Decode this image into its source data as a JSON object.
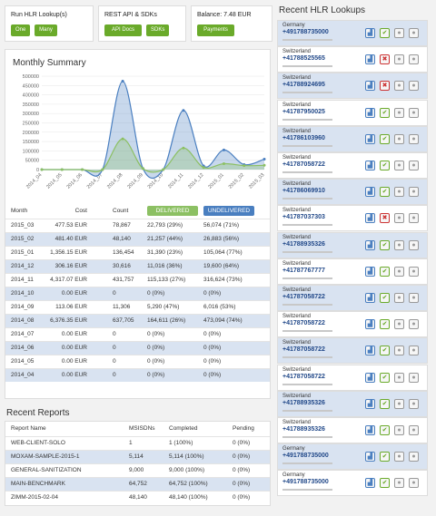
{
  "panels": [
    {
      "title": "Run HLR Lookup(s)",
      "buttons": [
        "One",
        "Many"
      ]
    },
    {
      "title": "REST API & SDKs",
      "buttons": [
        "API Docs",
        "SDKs"
      ]
    },
    {
      "title": "Balance: 7.48 EUR",
      "buttons": [
        "Payments"
      ]
    }
  ],
  "monthly_summary": {
    "title": "Monthly Summary",
    "chart_data": {
      "type": "area",
      "categories": [
        "2014_04",
        "2014_05",
        "2014_06",
        "2014_07",
        "2014_08",
        "2014_09",
        "2014_10",
        "2014_11",
        "2014_12",
        "2015_01",
        "2015_02",
        "2015_03"
      ],
      "series": [
        {
          "color": "#4a7fc0",
          "values": [
            0,
            0,
            0,
            0,
            473094,
            6016,
            0,
            316624,
            19600,
            105064,
            26883,
            56074
          ]
        },
        {
          "color": "#8cc063",
          "values": [
            0,
            0,
            0,
            0,
            164611,
            5290,
            0,
            115133,
            11016,
            31390,
            21257,
            22793
          ]
        }
      ],
      "ylim": [
        0,
        500000
      ],
      "yticks": [
        0,
        50000,
        100000,
        150000,
        200000,
        250000,
        300000,
        350000,
        400000,
        450000,
        500000
      ],
      "grid": true
    },
    "table": {
      "headers": [
        "Month",
        "Cost",
        "Count",
        "DELIVERED",
        "UNDELIVERED"
      ],
      "rows": [
        [
          "2015_03",
          "477.53 EUR",
          "78,867",
          "22,793 (29%)",
          "56,074 (71%)"
        ],
        [
          "2015_02",
          "481.40 EUR",
          "48,140",
          "21,257 (44%)",
          "26,883 (56%)"
        ],
        [
          "2015_01",
          "1,356.15 EUR",
          "136,454",
          "31,390 (23%)",
          "105,064 (77%)"
        ],
        [
          "2014_12",
          "306.16 EUR",
          "30,616",
          "11,016 (36%)",
          "19,600 (64%)"
        ],
        [
          "2014_11",
          "4,317.07 EUR",
          "431,757",
          "115,133 (27%)",
          "316,624 (73%)"
        ],
        [
          "2014_10",
          "0.00 EUR",
          "0",
          "0 (0%)",
          "0 (0%)"
        ],
        [
          "2014_09",
          "113.06 EUR",
          "11,306",
          "5,290 (47%)",
          "6,016 (53%)"
        ],
        [
          "2014_08",
          "6,376.35 EUR",
          "637,705",
          "164,611 (26%)",
          "473,094 (74%)"
        ],
        [
          "2014_07",
          "0.00 EUR",
          "0",
          "0 (0%)",
          "0 (0%)"
        ],
        [
          "2014_06",
          "0.00 EUR",
          "0",
          "0 (0%)",
          "0 (0%)"
        ],
        [
          "2014_05",
          "0.00 EUR",
          "0",
          "0 (0%)",
          "0 (0%)"
        ],
        [
          "2014_04",
          "0.00 EUR",
          "0",
          "0 (0%)",
          "0 (0%)"
        ]
      ]
    }
  },
  "recent_reports": {
    "title": "Recent Reports",
    "table": {
      "headers": [
        "Report Name",
        "MSISDNs",
        "Completed",
        "Pending"
      ],
      "rows": [
        [
          "WEB-CLIENT-SOLO",
          "1",
          "1 (100%)",
          "0 (0%)"
        ],
        [
          "MOXAM-SAMPLE-2015-1",
          "5,114",
          "5,114 (100%)",
          "0 (0%)"
        ],
        [
          "GENERAL-SANITIZATION",
          "9,000",
          "9,000 (100%)",
          "0 (0%)"
        ],
        [
          "MAIN-BENCHMARK",
          "64,752",
          "64,752 (100%)",
          "0 (0%)"
        ],
        [
          "ZIMM-2015-02-04",
          "48,140",
          "48,140 (100%)",
          "0 (0%)"
        ]
      ]
    }
  },
  "recent_lookups": {
    "title": "Recent HLR Lookups",
    "items": [
      {
        "country": "Germany",
        "number": "+491788735000",
        "ok": true
      },
      {
        "country": "Switzerland",
        "number": "+41788525565",
        "ok": false
      },
      {
        "country": "Switzerland",
        "number": "+41788924695",
        "ok": false
      },
      {
        "country": "Switzerland",
        "number": "+41787950025",
        "ok": true
      },
      {
        "country": "Switzerland",
        "number": "+41786103960",
        "ok": true
      },
      {
        "country": "Switzerland",
        "number": "+41787058722",
        "ok": true
      },
      {
        "country": "Switzerland",
        "number": "+41786069910",
        "ok": true
      },
      {
        "country": "Switzerland",
        "number": "+41787037303",
        "ok": false
      },
      {
        "country": "Switzerland",
        "number": "+41788935326",
        "ok": true
      },
      {
        "country": "Switzerland",
        "number": "+41787767777",
        "ok": true
      },
      {
        "country": "Switzerland",
        "number": "+41787058722",
        "ok": true
      },
      {
        "country": "Switzerland",
        "number": "+41787058722",
        "ok": true
      },
      {
        "country": "Switzerland",
        "number": "+41787058722",
        "ok": true
      },
      {
        "country": "Switzerland",
        "number": "+41787058722",
        "ok": true
      },
      {
        "country": "Switzerland",
        "number": "+41788935326",
        "ok": true
      },
      {
        "country": "Switzerland",
        "number": "+41788935326",
        "ok": true
      },
      {
        "country": "Germany",
        "number": "+491788735000",
        "ok": true
      },
      {
        "country": "Germany",
        "number": "+491788735000",
        "ok": true
      }
    ]
  }
}
